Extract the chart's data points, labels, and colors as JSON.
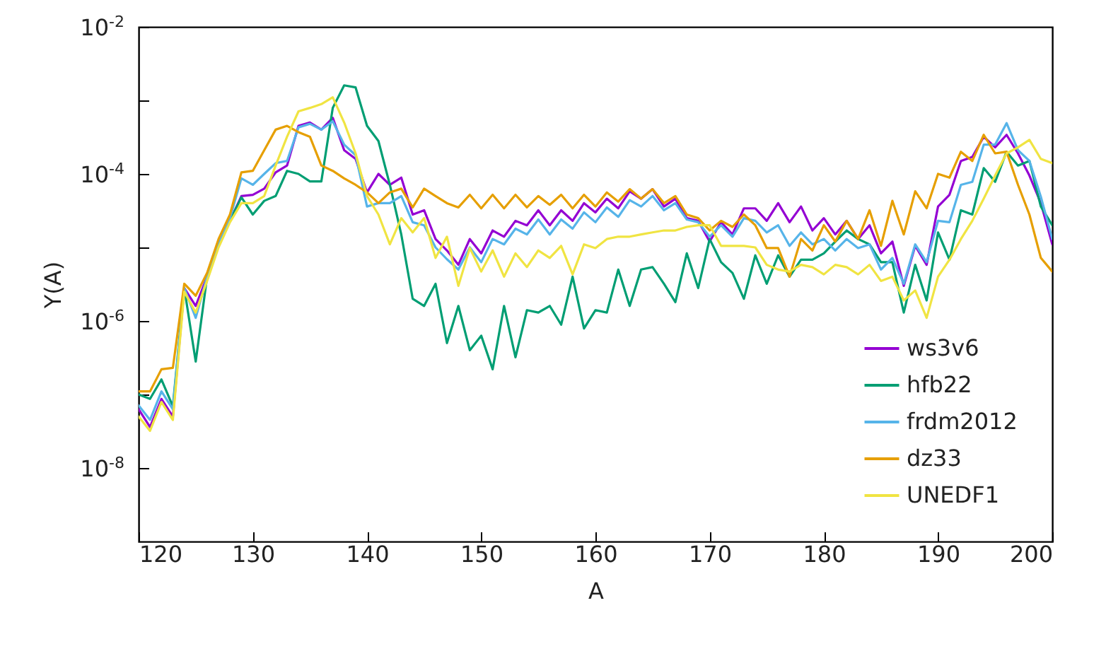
{
  "chart_data": {
    "type": "line",
    "xlabel": "A",
    "ylabel": "Y(A)",
    "log": "y",
    "legend": "bottom right",
    "xlim": [
      120,
      200
    ],
    "xticks": [
      120,
      130,
      140,
      150,
      160,
      170,
      180,
      190,
      200
    ],
    "ylim": [
      1e-09,
      0.01
    ],
    "yticks": [
      {
        "value": 0.01,
        "label": "10$^{-2}$"
      },
      {
        "value": 0.001,
        "label": null
      },
      {
        "value": 0.0001,
        "label": "10$^{-4}$"
      },
      {
        "value": 1e-05,
        "label": null
      },
      {
        "value": 1e-06,
        "label": "10$^{-6}$"
      },
      {
        "value": 1e-07,
        "label": null
      },
      {
        "value": 1e-08,
        "label": "10$^{-8}$"
      }
    ],
    "x": [
      120,
      121,
      122,
      123,
      124,
      125,
      126,
      127,
      128,
      129,
      130,
      131,
      132,
      133,
      134,
      135,
      136,
      137,
      138,
      139,
      140,
      141,
      142,
      143,
      144,
      145,
      146,
      147,
      148,
      149,
      150,
      151,
      152,
      153,
      154,
      155,
      156,
      157,
      158,
      159,
      160,
      161,
      162,
      163,
      164,
      165,
      166,
      167,
      168,
      169,
      170,
      171,
      172,
      173,
      174,
      175,
      176,
      177,
      178,
      179,
      180,
      181,
      182,
      183,
      184,
      185,
      186,
      187,
      188,
      189,
      190,
      191,
      192,
      193,
      194,
      195,
      196,
      197,
      198,
      199,
      200
    ],
    "series": [
      {
        "name": "ws3v6",
        "color": "#9400d3",
        "values": [
          6.3e-08,
          3.6e-08,
          8.7e-08,
          5e-08,
          2.8e-06,
          1.6e-06,
          4e-06,
          1.1e-05,
          2.3e-05,
          5e-05,
          5.2e-05,
          6.3e-05,
          0.000105,
          0.00013,
          0.00045,
          0.0005,
          0.0004,
          0.00058,
          0.00021,
          0.00016,
          5.6e-05,
          0.0001,
          7.1e-05,
          8.9e-05,
          2.8e-05,
          3.2e-05,
          1.3e-05,
          9.1e-06,
          5.8e-06,
          1.3e-05,
          8.3e-06,
          1.7e-05,
          1.4e-05,
          2.3e-05,
          2e-05,
          3.2e-05,
          2e-05,
          3.2e-05,
          2.3e-05,
          4e-05,
          3e-05,
          4.6e-05,
          3.4e-05,
          5.8e-05,
          4.6e-05,
          6.2e-05,
          3.6e-05,
          4.6e-05,
          2.5e-05,
          2.3e-05,
          1.2e-05,
          2.2e-05,
          1.5e-05,
          3.4e-05,
          3.4e-05,
          2.3e-05,
          4e-05,
          2.2e-05,
          3.6e-05,
          1.7e-05,
          2.5e-05,
          1.5e-05,
          2.3e-05,
          1.3e-05,
          2e-05,
          8.3e-06,
          1.2e-05,
          3e-06,
          1.05e-05,
          5.8e-06,
          3.6e-05,
          5.2e-05,
          0.00015,
          0.00017,
          0.00032,
          0.00023,
          0.00034,
          0.00019,
          9.5e-05,
          4e-05,
          1.1e-05
        ]
      },
      {
        "name": "hfb22",
        "color": "#009e73",
        "values": [
          1e-07,
          8.7e-08,
          1.6e-07,
          6.9e-08,
          2.8e-06,
          2.8e-07,
          4e-06,
          1.1e-05,
          2.3e-05,
          4.8e-05,
          2.8e-05,
          4.3e-05,
          5e-05,
          0.00011,
          0.0001,
          7.9e-05,
          7.9e-05,
          0.00079,
          0.0016,
          0.0015,
          0.00045,
          0.00028,
          7.1e-05,
          1.5e-05,
          2e-06,
          1.6e-06,
          3.2e-06,
          5e-07,
          1.6e-06,
          4e-07,
          6.3e-07,
          2.2e-07,
          1.6e-06,
          3.2e-07,
          1.4e-06,
          1.3e-06,
          1.6e-06,
          8.9e-07,
          4e-06,
          7.9e-07,
          1.4e-06,
          1.3e-06,
          5e-06,
          1.6e-06,
          5e-06,
          5.4e-06,
          3.2e-06,
          1.8e-06,
          8.3e-06,
          2.8e-06,
          1.3e-05,
          6.3e-06,
          4.5e-06,
          2e-06,
          7.8e-06,
          3.2e-06,
          7.8e-06,
          4e-06,
          6.8e-06,
          6.8e-06,
          8.3e-06,
          1.2e-05,
          1.7e-05,
          1.3e-05,
          1.1e-05,
          6.3e-06,
          6.3e-06,
          1.3e-06,
          5.8e-06,
          1.9e-06,
          1.6e-05,
          6.8e-06,
          3.2e-05,
          2.8e-05,
          0.00012,
          7.8e-05,
          0.0002,
          0.00013,
          0.00015,
          3.6e-05,
          2e-05
        ]
      },
      {
        "name": "frdm2012",
        "color": "#56b4e9",
        "values": [
          7.1e-08,
          4.5e-08,
          1.1e-07,
          6.3e-08,
          2.8e-06,
          1.1e-06,
          4e-06,
          1.1e-05,
          2.5e-05,
          8.7e-05,
          7.1e-05,
          0.0001,
          0.00014,
          0.00015,
          0.00043,
          0.00048,
          0.0004,
          0.00052,
          0.00025,
          0.00018,
          3.6e-05,
          4e-05,
          4e-05,
          5e-05,
          2.2e-05,
          2e-05,
          1e-05,
          6.9e-06,
          5e-06,
          1e-05,
          6.3e-06,
          1.3e-05,
          1.1e-05,
          1.8e-05,
          1.5e-05,
          2.4e-05,
          1.5e-05,
          2.4e-05,
          1.8e-05,
          3e-05,
          2.2e-05,
          3.5e-05,
          2.6e-05,
          4.4e-05,
          3.6e-05,
          5e-05,
          3.2e-05,
          4e-05,
          2.4e-05,
          2.2e-05,
          1.4e-05,
          2e-05,
          1.4e-05,
          2.5e-05,
          2.3e-05,
          1.6e-05,
          2e-05,
          1.05e-05,
          1.6e-05,
          1.1e-05,
          1.3e-05,
          9.1e-06,
          1.3e-05,
          9.8e-06,
          1.1e-05,
          5e-06,
          7.2e-06,
          3.2e-06,
          1.1e-05,
          6.3e-06,
          2.3e-05,
          2.2e-05,
          7.1e-05,
          7.8e-05,
          0.00025,
          0.00025,
          0.00049,
          0.00021,
          0.00015,
          4.9e-05,
          1.3e-05
        ]
      },
      {
        "name": "dz33",
        "color": "#e69f00",
        "values": [
          1.1e-07,
          1.1e-07,
          2.2e-07,
          2.3e-07,
          3.2e-06,
          2.2e-06,
          4.5e-06,
          1.3e-05,
          2.8e-05,
          0.000105,
          0.00011,
          0.00021,
          0.0004,
          0.00045,
          0.00037,
          0.00032,
          0.00013,
          0.00011,
          8.7e-05,
          7.1e-05,
          5.6e-05,
          4e-05,
          5.6e-05,
          6.3e-05,
          3.5e-05,
          6.3e-05,
          5e-05,
          4e-05,
          3.5e-05,
          5.2e-05,
          3.4e-05,
          5.2e-05,
          3.4e-05,
          5.2e-05,
          3.5e-05,
          5e-05,
          3.8e-05,
          5.2e-05,
          3.4e-05,
          5.2e-05,
          3.6e-05,
          5.6e-05,
          4.2e-05,
          6.2e-05,
          4.6e-05,
          6.2e-05,
          4e-05,
          5e-05,
          2.8e-05,
          2.5e-05,
          1.7e-05,
          2.3e-05,
          1.9e-05,
          2.8e-05,
          2e-05,
          9.8e-06,
          9.8e-06,
          4e-06,
          1.3e-05,
          9.1e-06,
          2e-05,
          1.2e-05,
          2.3e-05,
          1.3e-05,
          3.2e-05,
          1.05e-05,
          4.3e-05,
          1.5e-05,
          5.8e-05,
          3.4e-05,
          0.0001,
          8.9e-05,
          0.0002,
          0.00015,
          0.00034,
          0.00019,
          0.0002,
          7.1e-05,
          2.8e-05,
          7.2e-06,
          4.7e-06
        ]
      },
      {
        "name": "UNEDF1",
        "color": "#f0e442",
        "values": [
          5e-08,
          3.2e-08,
          7.9e-08,
          4.5e-08,
          2.5e-06,
          1.3e-06,
          3.5e-06,
          1e-05,
          2.2e-05,
          4e-05,
          4e-05,
          5e-05,
          0.00013,
          0.00032,
          0.00071,
          0.00079,
          0.00089,
          0.0011,
          0.0005,
          0.00019,
          5e-05,
          2.8e-05,
          1.1e-05,
          2.5e-05,
          1.6e-05,
          2.5e-05,
          7.2e-06,
          1.4e-05,
          3e-06,
          9.8e-06,
          4.7e-06,
          9.1e-06,
          4e-06,
          8.3e-06,
          5.4e-06,
          9.1e-06,
          7.2e-06,
          1.05e-05,
          4.3e-06,
          1.1e-05,
          9.8e-06,
          1.3e-05,
          1.4e-05,
          1.4e-05,
          1.5e-05,
          1.6e-05,
          1.7e-05,
          1.7e-05,
          1.9e-05,
          2e-05,
          2e-05,
          1.05e-05,
          1.05e-05,
          1.05e-05,
          1e-05,
          5.8e-06,
          5e-06,
          4.7e-06,
          5.8e-06,
          5.4e-06,
          4.3e-06,
          5.8e-06,
          5.4e-06,
          4.3e-06,
          5.8e-06,
          3.5e-06,
          4e-06,
          1.9e-06,
          2.6e-06,
          1.1e-06,
          4e-06,
          6.8e-06,
          1.3e-05,
          2.3e-05,
          4.6e-05,
          9.5e-05,
          0.00019,
          0.00023,
          0.00029,
          0.00016,
          0.00014
        ]
      }
    ]
  }
}
